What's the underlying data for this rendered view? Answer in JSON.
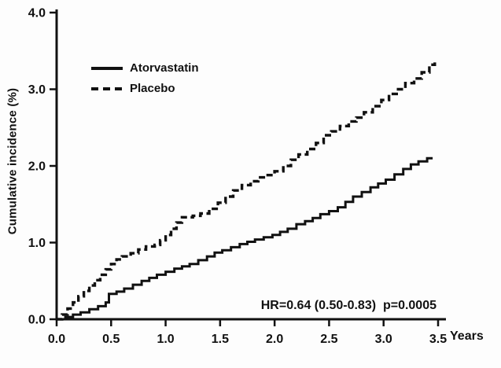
{
  "chart_data": {
    "type": "line",
    "subtype": "kaplan-meier-step",
    "title": "",
    "xlabel": "Years",
    "ylabel": "Cumulative incidence (%)",
    "xlim": [
      0,
      3.5
    ],
    "ylim": [
      0,
      4.0
    ],
    "x_ticks": [
      0.0,
      0.5,
      1.0,
      1.5,
      2.0,
      2.5,
      3.0,
      3.5
    ],
    "x_tick_labels": [
      "0.0",
      "0.5",
      "1.0",
      "1.5",
      "2.0",
      "2.5",
      "3.0",
      "3.5"
    ],
    "y_ticks": [
      0.0,
      1.0,
      2.0,
      3.0,
      4.0
    ],
    "y_tick_labels": [
      "0.0",
      "1.0",
      "2.0",
      "3.0",
      "4.0"
    ],
    "grid": false,
    "legend_position": "upper-left-inside",
    "annotation": "HR=0.64 (0.50-0.83)  p=0.0005",
    "line_color": "#111111",
    "series": [
      {
        "name": "Atorvastatin",
        "style": "solid",
        "color": "#111111",
        "points": [
          [
            0.0,
            0.0
          ],
          [
            0.08,
            0.03
          ],
          [
            0.15,
            0.06
          ],
          [
            0.22,
            0.09
          ],
          [
            0.3,
            0.13
          ],
          [
            0.38,
            0.17
          ],
          [
            0.45,
            0.22
          ],
          [
            0.48,
            0.33
          ],
          [
            0.55,
            0.36
          ],
          [
            0.62,
            0.4
          ],
          [
            0.7,
            0.45
          ],
          [
            0.78,
            0.5
          ],
          [
            0.85,
            0.54
          ],
          [
            0.92,
            0.58
          ],
          [
            1.0,
            0.62
          ],
          [
            1.08,
            0.66
          ],
          [
            1.15,
            0.69
          ],
          [
            1.22,
            0.72
          ],
          [
            1.3,
            0.77
          ],
          [
            1.38,
            0.82
          ],
          [
            1.45,
            0.87
          ],
          [
            1.52,
            0.9
          ],
          [
            1.6,
            0.94
          ],
          [
            1.68,
            0.98
          ],
          [
            1.75,
            1.01
          ],
          [
            1.82,
            1.04
          ],
          [
            1.9,
            1.07
          ],
          [
            1.98,
            1.1
          ],
          [
            2.05,
            1.14
          ],
          [
            2.12,
            1.18
          ],
          [
            2.2,
            1.24
          ],
          [
            2.28,
            1.28
          ],
          [
            2.35,
            1.32
          ],
          [
            2.42,
            1.37
          ],
          [
            2.5,
            1.41
          ],
          [
            2.58,
            1.46
          ],
          [
            2.65,
            1.53
          ],
          [
            2.72,
            1.6
          ],
          [
            2.8,
            1.66
          ],
          [
            2.88,
            1.72
          ],
          [
            2.95,
            1.77
          ],
          [
            3.02,
            1.82
          ],
          [
            3.1,
            1.89
          ],
          [
            3.18,
            1.96
          ],
          [
            3.25,
            2.02
          ],
          [
            3.32,
            2.06
          ],
          [
            3.4,
            2.1
          ],
          [
            3.45,
            2.1
          ]
        ]
      },
      {
        "name": "Placebo",
        "style": "dashed",
        "color": "#111111",
        "points": [
          [
            0.0,
            0.0
          ],
          [
            0.05,
            0.06
          ],
          [
            0.1,
            0.14
          ],
          [
            0.15,
            0.22
          ],
          [
            0.2,
            0.3
          ],
          [
            0.25,
            0.37
          ],
          [
            0.3,
            0.44
          ],
          [
            0.35,
            0.51
          ],
          [
            0.4,
            0.58
          ],
          [
            0.45,
            0.65
          ],
          [
            0.5,
            0.72
          ],
          [
            0.55,
            0.78
          ],
          [
            0.6,
            0.82
          ],
          [
            0.68,
            0.86
          ],
          [
            0.75,
            0.91
          ],
          [
            0.82,
            0.95
          ],
          [
            0.9,
            0.97
          ],
          [
            0.95,
            1.03
          ],
          [
            1.0,
            1.1
          ],
          [
            1.05,
            1.18
          ],
          [
            1.1,
            1.26
          ],
          [
            1.15,
            1.33
          ],
          [
            1.25,
            1.35
          ],
          [
            1.32,
            1.38
          ],
          [
            1.4,
            1.44
          ],
          [
            1.48,
            1.52
          ],
          [
            1.55,
            1.6
          ],
          [
            1.62,
            1.68
          ],
          [
            1.7,
            1.75
          ],
          [
            1.78,
            1.8
          ],
          [
            1.85,
            1.85
          ],
          [
            1.92,
            1.88
          ],
          [
            2.0,
            1.93
          ],
          [
            2.08,
            2.0
          ],
          [
            2.15,
            2.08
          ],
          [
            2.22,
            2.15
          ],
          [
            2.3,
            2.22
          ],
          [
            2.38,
            2.3
          ],
          [
            2.45,
            2.4
          ],
          [
            2.52,
            2.45
          ],
          [
            2.6,
            2.52
          ],
          [
            2.68,
            2.58
          ],
          [
            2.75,
            2.63
          ],
          [
            2.82,
            2.7
          ],
          [
            2.9,
            2.78
          ],
          [
            2.98,
            2.86
          ],
          [
            3.05,
            2.94
          ],
          [
            3.12,
            3.0
          ],
          [
            3.2,
            3.08
          ],
          [
            3.28,
            3.14
          ],
          [
            3.35,
            3.22
          ],
          [
            3.42,
            3.32
          ],
          [
            3.47,
            3.35
          ]
        ]
      }
    ]
  }
}
